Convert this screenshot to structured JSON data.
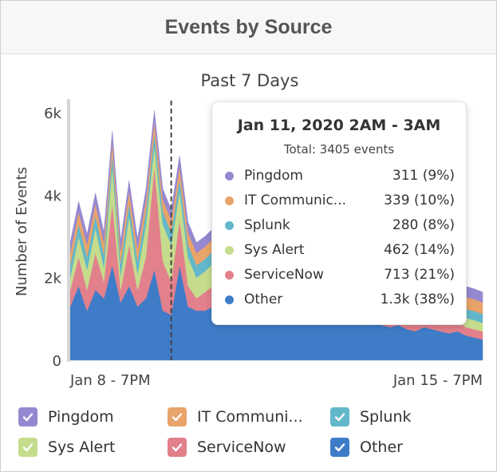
{
  "header": {
    "title": "Events by Source"
  },
  "chart_data": {
    "type": "area",
    "stacked": true,
    "title": "Past 7 Days",
    "xlabel": "",
    "ylabel": "Number of Events",
    "ylim": [
      0,
      6000
    ],
    "yticks": [
      {
        "value": 0,
        "label": "0"
      },
      {
        "value": 2000,
        "label": "2k"
      },
      {
        "value": 4000,
        "label": "4k"
      },
      {
        "value": 6000,
        "label": "6k"
      }
    ],
    "xticks": [
      "Jan 8 - 7PM",
      "Jan 15 - 7PM"
    ],
    "hover_marker_index": 12,
    "series": [
      {
        "name": "Other",
        "color": "#3f7cc8",
        "values": [
          1300,
          1800,
          1200,
          1700,
          1500,
          2300,
          1400,
          1800,
          1300,
          1500,
          2200,
          1200,
          1100,
          2300,
          1300,
          1200,
          1200,
          1300,
          1200,
          1300,
          1100,
          1200,
          1100,
          1150,
          1100,
          1000,
          1100,
          1050,
          1000,
          1050,
          1000,
          950,
          900,
          950,
          900,
          850,
          900,
          850,
          800,
          850,
          750,
          700,
          800,
          750,
          700,
          650,
          700,
          600,
          550,
          500
        ]
      },
      {
        "name": "ServiceNow",
        "color": "#e2808c",
        "values": [
          400,
          700,
          500,
          900,
          400,
          1500,
          300,
          1000,
          400,
          1000,
          2500,
          1200,
          800,
          1100,
          500,
          300,
          450,
          500,
          350,
          500,
          400,
          350,
          350,
          300,
          350,
          350,
          300,
          300,
          350,
          300,
          300,
          300,
          300,
          300,
          250,
          300,
          250,
          300,
          250,
          250,
          250,
          250,
          250,
          250,
          250,
          250,
          250,
          200,
          200,
          200
        ]
      },
      {
        "name": "Sys Alert",
        "color": "#c5dc8c",
        "values": [
          300,
          500,
          500,
          600,
          350,
          900,
          350,
          700,
          400,
          800,
          500,
          900,
          900,
          700,
          700,
          500,
          500,
          550,
          450,
          600,
          300,
          250,
          300,
          300,
          300,
          250,
          300,
          300,
          300,
          280,
          250,
          250,
          280,
          250,
          250,
          250,
          250,
          250,
          250,
          250,
          250,
          230,
          250,
          250,
          230,
          250,
          230,
          220,
          220,
          200
        ]
      },
      {
        "name": "Splunk",
        "color": "#62b8ca",
        "values": [
          300,
          300,
          300,
          300,
          300,
          300,
          300,
          300,
          300,
          300,
          300,
          300,
          300,
          300,
          300,
          300,
          300,
          300,
          300,
          300,
          280,
          280,
          280,
          280,
          260,
          260,
          260,
          260,
          250,
          250,
          250,
          250,
          250,
          250,
          240,
          240,
          240,
          240,
          230,
          230,
          230,
          230,
          230,
          230,
          230,
          220,
          220,
          220,
          220,
          220
        ]
      },
      {
        "name": "IT Communications",
        "color": "#e8a46a",
        "values": [
          300,
          300,
          300,
          300,
          300,
          300,
          300,
          300,
          300,
          300,
          300,
          300,
          300,
          300,
          300,
          300,
          300,
          300,
          300,
          300,
          320,
          330,
          330,
          330,
          340,
          340,
          340,
          340,
          330,
          330,
          330,
          320,
          320,
          320,
          320,
          310,
          310,
          310,
          310,
          300,
          300,
          300,
          300,
          300,
          300,
          300,
          290,
          290,
          290,
          280
        ]
      },
      {
        "name": "Pingdom",
        "color": "#9688d0",
        "values": [
          250,
          250,
          250,
          250,
          250,
          250,
          250,
          250,
          250,
          250,
          250,
          250,
          250,
          250,
          250,
          250,
          250,
          250,
          250,
          250,
          280,
          290,
          300,
          300,
          300,
          310,
          310,
          310,
          300,
          300,
          300,
          300,
          290,
          290,
          290,
          290,
          280,
          280,
          280,
          280,
          270,
          270,
          270,
          270,
          260,
          260,
          260,
          260,
          250,
          250
        ]
      }
    ]
  },
  "tooltip": {
    "title": "Jan 11, 2020 2AM - 3AM",
    "total": "Total: 3405 events",
    "rows": [
      {
        "name": "Pingdom",
        "value": "311 (9%)",
        "color": "#9688d0"
      },
      {
        "name": "IT Communic...",
        "value": "339 (10%)",
        "color": "#e8a46a"
      },
      {
        "name": "Splunk",
        "value": "280 (8%)",
        "color": "#62b8ca"
      },
      {
        "name": "Sys Alert",
        "value": "462 (14%)",
        "color": "#c5dc8c"
      },
      {
        "name": "ServiceNow",
        "value": "713 (21%)",
        "color": "#e2808c"
      },
      {
        "name": "Other",
        "value": "1.3k (38%)",
        "color": "#3f7cc8"
      }
    ]
  },
  "legend": [
    {
      "label": "Pingdom",
      "color": "#9688d0",
      "icon": "checkbox-checked-icon"
    },
    {
      "label": "IT Communi...",
      "color": "#e8a46a",
      "icon": "checkbox-checked-icon"
    },
    {
      "label": "Splunk",
      "color": "#62b8ca",
      "icon": "checkbox-checked-icon"
    },
    {
      "label": "Sys Alert",
      "color": "#c5dc8c",
      "icon": "checkbox-checked-icon"
    },
    {
      "label": "ServiceNow",
      "color": "#e2808c",
      "icon": "checkbox-checked-icon"
    },
    {
      "label": "Other",
      "color": "#3f7cc8",
      "icon": "checkbox-checked-icon"
    }
  ]
}
